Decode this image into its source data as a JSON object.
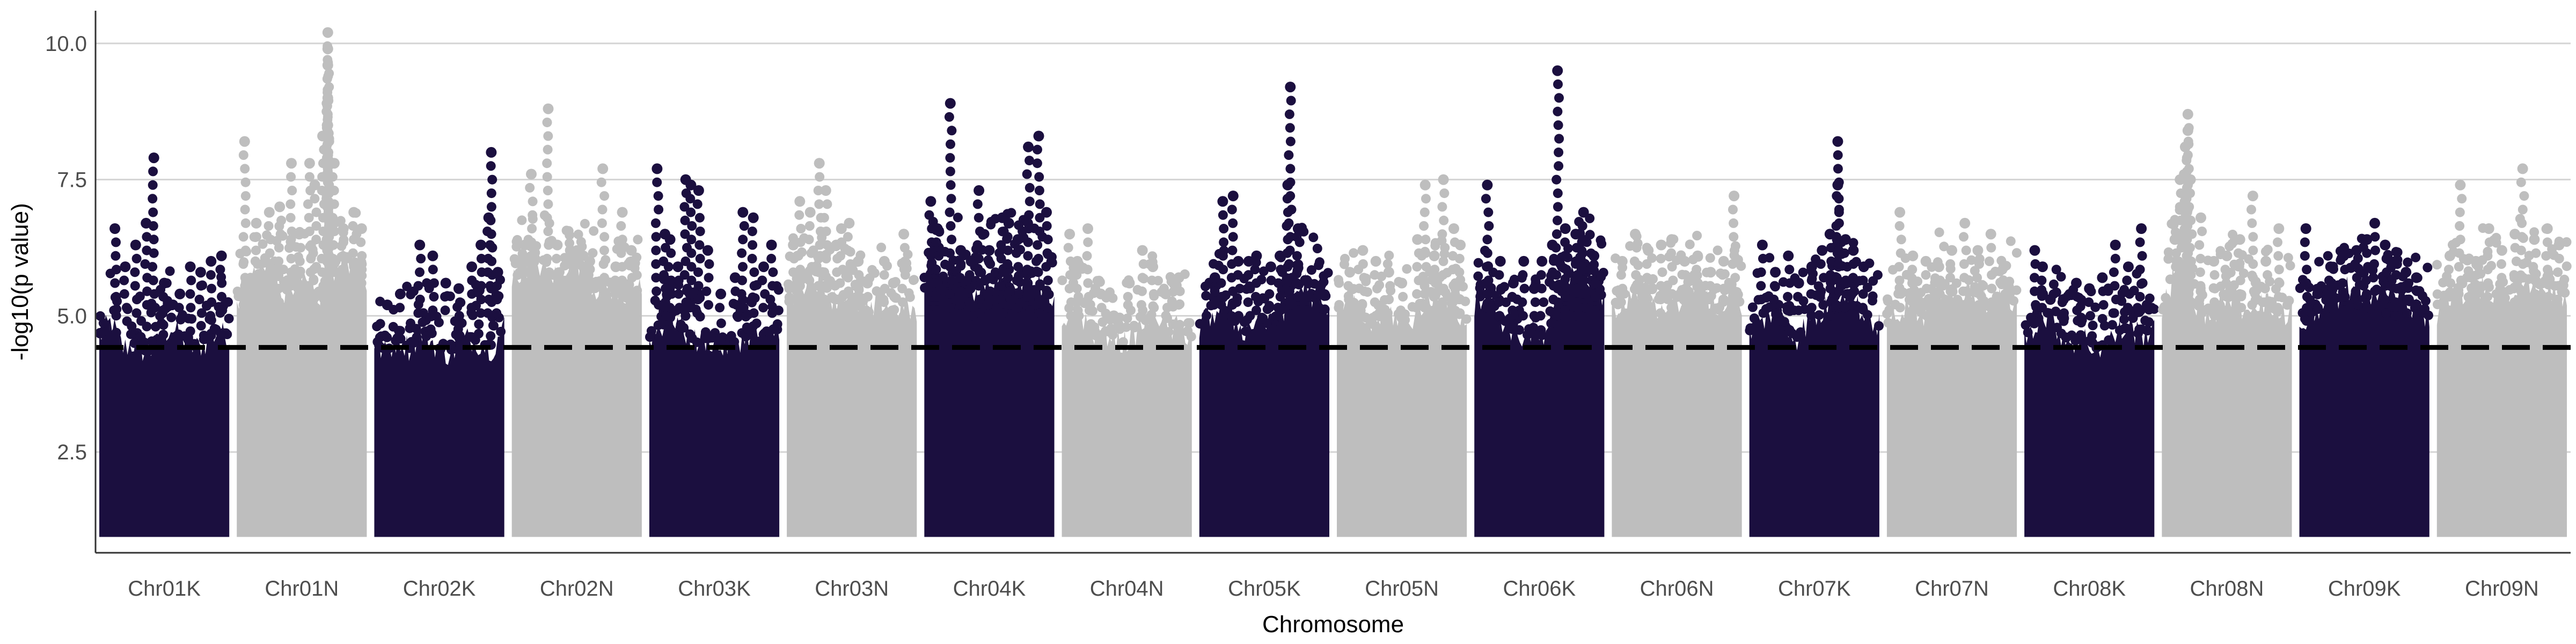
{
  "chart_data": {
    "type": "scatter",
    "subtype": "manhattan",
    "title": "",
    "xlabel": "Chromosome",
    "ylabel": "-log10(p value)",
    "ylim": [
      0.65,
      10.6
    ],
    "yticks": [
      2.5,
      5.0,
      7.5,
      10.0
    ],
    "ytick_labels": [
      "2.5",
      "5.0",
      "7.5",
      "10.0"
    ],
    "grid": "horizontal major gridlines",
    "legend": "none",
    "colors": {
      "K": "#1b0f3f",
      "N": "#bebebe",
      "threshold": "#000000",
      "grid": "#d4d4d4"
    },
    "threshold": {
      "value": 4.42,
      "style": "dashed"
    },
    "floor_value": 1.0,
    "chromosomes": [
      {
        "name": "Chr01K",
        "group": "K",
        "band_top": [
          4.6,
          4.9,
          4.4,
          4.5,
          4.3,
          4.5,
          4.8,
          4.6,
          4.4,
          4.5,
          4.7,
          4.6
        ],
        "peaks": [
          [
            0.12,
            6.6
          ],
          [
            0.2,
            5.9
          ],
          [
            0.28,
            6.3
          ],
          [
            0.36,
            6.7
          ],
          [
            0.42,
            7.9
          ],
          [
            0.5,
            5.6
          ],
          [
            0.62,
            5.4
          ],
          [
            0.7,
            5.9
          ],
          [
            0.78,
            5.8
          ],
          [
            0.86,
            6.0
          ],
          [
            0.94,
            6.1
          ],
          [
            0.56,
            5.2
          ]
        ]
      },
      {
        "name": "Chr01N",
        "group": "N",
        "band_top": [
          5.3,
          5.6,
          5.8,
          5.9,
          5.4,
          5.7,
          5.5,
          5.2,
          5.8,
          6.1,
          5.9,
          5.6
        ],
        "peaks": [
          [
            0.06,
            8.2
          ],
          [
            0.15,
            6.7
          ],
          [
            0.25,
            6.9
          ],
          [
            0.33,
            7.0
          ],
          [
            0.42,
            7.8
          ],
          [
            0.48,
            6.5
          ],
          [
            0.56,
            7.8
          ],
          [
            0.6,
            7.4
          ],
          [
            0.66,
            8.3
          ],
          [
            0.7,
            10.2
          ],
          [
            0.7,
            9.9
          ],
          [
            0.7,
            9.6
          ],
          [
            0.7,
            9.0
          ],
          [
            0.7,
            8.5
          ],
          [
            0.75,
            7.8
          ],
          [
            0.82,
            6.6
          ],
          [
            0.9,
            6.9
          ],
          [
            0.96,
            6.6
          ]
        ]
      },
      {
        "name": "Chr02K",
        "group": "K",
        "band_top": [
          4.5,
          4.3,
          4.6,
          4.4,
          4.7,
          4.5,
          4.3,
          4.4,
          4.6,
          4.5,
          4.4,
          4.8
        ],
        "peaks": [
          [
            0.1,
            5.2
          ],
          [
            0.2,
            5.4
          ],
          [
            0.35,
            6.3
          ],
          [
            0.45,
            6.1
          ],
          [
            0.55,
            5.6
          ],
          [
            0.65,
            5.5
          ],
          [
            0.75,
            5.9
          ],
          [
            0.82,
            6.3
          ],
          [
            0.88,
            6.8
          ],
          [
            0.9,
            8.0
          ],
          [
            0.95,
            5.8
          ]
        ]
      },
      {
        "name": "Chr02N",
        "group": "N",
        "band_top": [
          5.6,
          5.9,
          6.0,
          5.8,
          5.7,
          6.1,
          5.9,
          5.5,
          5.6,
          5.4,
          5.3,
          5.5
        ],
        "peaks": [
          [
            0.1,
            6.3
          ],
          [
            0.15,
            7.6
          ],
          [
            0.28,
            8.8
          ],
          [
            0.35,
            6.3
          ],
          [
            0.45,
            6.2
          ],
          [
            0.55,
            6.1
          ],
          [
            0.6,
            6.0
          ],
          [
            0.7,
            7.7
          ],
          [
            0.8,
            5.9
          ],
          [
            0.85,
            6.9
          ],
          [
            0.92,
            6.2
          ]
        ]
      },
      {
        "name": "Chr03K",
        "group": "K",
        "band_top": [
          4.6,
          4.8,
          5.0,
          4.7,
          4.5,
          4.6,
          4.4,
          4.5,
          4.6,
          4.7,
          4.5,
          4.8
        ],
        "peaks": [
          [
            0.06,
            7.7
          ],
          [
            0.12,
            6.5
          ],
          [
            0.16,
            6.4
          ],
          [
            0.22,
            5.9
          ],
          [
            0.28,
            7.5
          ],
          [
            0.32,
            7.4
          ],
          [
            0.38,
            7.3
          ],
          [
            0.45,
            6.2
          ],
          [
            0.55,
            5.4
          ],
          [
            0.66,
            5.7
          ],
          [
            0.72,
            6.9
          ],
          [
            0.8,
            6.8
          ],
          [
            0.88,
            5.9
          ],
          [
            0.94,
            6.3
          ]
        ]
      },
      {
        "name": "Chr03N",
        "group": "N",
        "band_top": [
          5.2,
          5.5,
          5.8,
          5.6,
          5.3,
          5.4,
          5.2,
          5.0,
          5.3,
          5.1,
          5.2,
          5.0
        ],
        "peaks": [
          [
            0.05,
            6.3
          ],
          [
            0.1,
            7.1
          ],
          [
            0.18,
            6.9
          ],
          [
            0.25,
            7.8
          ],
          [
            0.3,
            7.3
          ],
          [
            0.38,
            6.3
          ],
          [
            0.42,
            6.6
          ],
          [
            0.48,
            6.7
          ],
          [
            0.55,
            6.0
          ],
          [
            0.62,
            5.6
          ],
          [
            0.75,
            6.0
          ],
          [
            0.82,
            5.6
          ],
          [
            0.9,
            6.5
          ]
        ]
      },
      {
        "name": "Chr04K",
        "group": "K",
        "band_top": [
          5.5,
          5.8,
          5.6,
          5.9,
          5.4,
          5.5,
          5.7,
          5.9,
          5.6,
          5.8,
          5.5,
          5.3
        ],
        "peaks": [
          [
            0.05,
            7.1
          ],
          [
            0.1,
            6.6
          ],
          [
            0.2,
            8.9
          ],
          [
            0.28,
            6.2
          ],
          [
            0.36,
            6.0
          ],
          [
            0.42,
            7.3
          ],
          [
            0.5,
            6.2
          ],
          [
            0.6,
            6.8
          ],
          [
            0.65,
            6.7
          ],
          [
            0.72,
            6.4
          ],
          [
            0.8,
            8.1
          ],
          [
            0.88,
            8.3
          ],
          [
            0.94,
            6.9
          ]
        ]
      },
      {
        "name": "Chr04N",
        "group": "N",
        "band_top": [
          4.8,
          5.2,
          4.9,
          4.6,
          4.7,
          4.5,
          4.6,
          4.9,
          5.1,
          4.7,
          4.8,
          4.6
        ],
        "peaks": [
          [
            0.06,
            6.5
          ],
          [
            0.12,
            6.0
          ],
          [
            0.2,
            6.6
          ],
          [
            0.3,
            5.4
          ],
          [
            0.4,
            5.0
          ],
          [
            0.52,
            5.6
          ],
          [
            0.62,
            6.2
          ],
          [
            0.7,
            5.9
          ],
          [
            0.8,
            5.4
          ],
          [
            0.9,
            5.7
          ]
        ]
      },
      {
        "name": "Chr05K",
        "group": "K",
        "band_top": [
          4.8,
          5.0,
          5.2,
          4.9,
          4.7,
          5.0,
          4.8,
          5.1,
          5.4,
          5.6,
          5.2,
          5.0
        ],
        "peaks": [
          [
            0.12,
            5.7
          ],
          [
            0.18,
            7.1
          ],
          [
            0.26,
            7.2
          ],
          [
            0.3,
            6.0
          ],
          [
            0.38,
            6.0
          ],
          [
            0.44,
            6.1
          ],
          [
            0.55,
            5.9
          ],
          [
            0.62,
            6.1
          ],
          [
            0.68,
            7.4
          ],
          [
            0.7,
            9.2
          ],
          [
            0.76,
            6.6
          ],
          [
            0.84,
            5.6
          ],
          [
            0.92,
            5.4
          ]
        ]
      },
      {
        "name": "Chr05N",
        "group": "N",
        "band_top": [
          4.9,
          5.3,
          5.0,
          4.8,
          5.1,
          5.0,
          4.8,
          5.2,
          5.3,
          5.5,
          5.1,
          4.9
        ],
        "peaks": [
          [
            0.1,
            5.8
          ],
          [
            0.2,
            6.2
          ],
          [
            0.3,
            6.0
          ],
          [
            0.4,
            5.8
          ],
          [
            0.5,
            5.6
          ],
          [
            0.62,
            6.4
          ],
          [
            0.68,
            7.4
          ],
          [
            0.75,
            6.1
          ],
          [
            0.82,
            7.5
          ],
          [
            0.9,
            6.6
          ],
          [
            0.95,
            6.3
          ]
        ]
      },
      {
        "name": "Chr06K",
        "group": "K",
        "band_top": [
          5.2,
          5.5,
          5.0,
          4.8,
          4.6,
          4.7,
          4.5,
          5.2,
          5.8,
          6.0,
          5.6,
          5.3
        ],
        "peaks": [
          [
            0.1,
            7.4
          ],
          [
            0.2,
            6.0
          ],
          [
            0.3,
            5.6
          ],
          [
            0.38,
            6.0
          ],
          [
            0.46,
            5.5
          ],
          [
            0.52,
            6.0
          ],
          [
            0.6,
            6.3
          ],
          [
            0.64,
            9.5
          ],
          [
            0.7,
            6.6
          ],
          [
            0.78,
            6.5
          ],
          [
            0.84,
            6.9
          ],
          [
            0.92,
            6.1
          ]
        ]
      },
      {
        "name": "Chr06N",
        "group": "N",
        "band_top": [
          5.1,
          5.3,
          5.5,
          5.2,
          5.0,
          5.4,
          5.2,
          5.6,
          5.3,
          5.1,
          5.5,
          5.2
        ],
        "peaks": [
          [
            0.08,
            6.0
          ],
          [
            0.18,
            6.5
          ],
          [
            0.28,
            6.2
          ],
          [
            0.38,
            6.3
          ],
          [
            0.46,
            6.4
          ],
          [
            0.56,
            6.0
          ],
          [
            0.66,
            6.1
          ],
          [
            0.76,
            5.8
          ],
          [
            0.86,
            6.0
          ],
          [
            0.94,
            7.2
          ]
        ]
      },
      {
        "name": "Chr07K",
        "group": "K",
        "band_top": [
          4.7,
          4.9,
          5.1,
          4.8,
          4.6,
          4.9,
          5.0,
          5.3,
          5.5,
          5.2,
          5.0,
          4.8
        ],
        "peaks": [
          [
            0.1,
            6.3
          ],
          [
            0.2,
            5.8
          ],
          [
            0.3,
            6.1
          ],
          [
            0.38,
            5.6
          ],
          [
            0.48,
            5.9
          ],
          [
            0.56,
            6.2
          ],
          [
            0.62,
            6.5
          ],
          [
            0.68,
            7.4
          ],
          [
            0.68,
            8.2
          ],
          [
            0.74,
            6.4
          ],
          [
            0.8,
            6.2
          ],
          [
            0.88,
            5.9
          ]
        ]
      },
      {
        "name": "Chr07N",
        "group": "N",
        "band_top": [
          4.8,
          5.1,
          5.3,
          5.0,
          5.4,
          5.6,
          5.2,
          5.5,
          5.3,
          5.1,
          5.4,
          5.2
        ],
        "peaks": [
          [
            0.1,
            6.9
          ],
          [
            0.2,
            6.1
          ],
          [
            0.3,
            6.0
          ],
          [
            0.4,
            5.9
          ],
          [
            0.5,
            6.2
          ],
          [
            0.6,
            6.7
          ],
          [
            0.7,
            6.2
          ],
          [
            0.8,
            6.5
          ],
          [
            0.9,
            5.9
          ]
        ]
      },
      {
        "name": "Chr08K",
        "group": "K",
        "band_top": [
          4.6,
          4.9,
          5.0,
          4.7,
          4.5,
          4.6,
          4.4,
          4.5,
          4.7,
          4.8,
          4.6,
          4.9
        ],
        "peaks": [
          [
            0.08,
            6.2
          ],
          [
            0.14,
            5.9
          ],
          [
            0.2,
            5.3
          ],
          [
            0.3,
            5.3
          ],
          [
            0.4,
            5.6
          ],
          [
            0.5,
            5.5
          ],
          [
            0.6,
            5.7
          ],
          [
            0.7,
            6.3
          ],
          [
            0.8,
            5.9
          ],
          [
            0.9,
            6.6
          ]
        ]
      },
      {
        "name": "Chr08N",
        "group": "N",
        "band_top": [
          5.0,
          5.8,
          5.9,
          5.2,
          5.0,
          5.2,
          5.4,
          5.1,
          5.3,
          5.2,
          5.0,
          5.1
        ],
        "peaks": [
          [
            0.1,
            6.4
          ],
          [
            0.14,
            7.5
          ],
          [
            0.18,
            8.1
          ],
          [
            0.2,
            8.7
          ],
          [
            0.2,
            8.4
          ],
          [
            0.22,
            7.5
          ],
          [
            0.3,
            6.8
          ],
          [
            0.4,
            6.0
          ],
          [
            0.5,
            6.1
          ],
          [
            0.6,
            6.4
          ],
          [
            0.7,
            7.2
          ],
          [
            0.8,
            6.0
          ],
          [
            0.9,
            6.6
          ]
        ]
      },
      {
        "name": "Chr09K",
        "group": "K",
        "band_top": [
          4.7,
          5.0,
          5.2,
          5.3,
          5.5,
          5.4,
          5.2,
          5.6,
          5.5,
          5.3,
          5.1,
          5.0
        ],
        "peaks": [
          [
            0.05,
            6.6
          ],
          [
            0.14,
            5.4
          ],
          [
            0.24,
            5.9
          ],
          [
            0.34,
            6.1
          ],
          [
            0.44,
            6.2
          ],
          [
            0.52,
            6.4
          ],
          [
            0.58,
            6.7
          ],
          [
            0.66,
            6.3
          ],
          [
            0.74,
            6.0
          ],
          [
            0.82,
            5.8
          ],
          [
            0.9,
            5.7
          ]
        ]
      },
      {
        "name": "Chr09N",
        "group": "N",
        "band_top": [
          5.0,
          5.3,
          5.5,
          5.2,
          5.6,
          5.4,
          5.3,
          5.7,
          5.5,
          5.6,
          5.4,
          5.3
        ],
        "peaks": [
          [
            0.1,
            6.1
          ],
          [
            0.18,
            7.4
          ],
          [
            0.3,
            6.0
          ],
          [
            0.4,
            6.6
          ],
          [
            0.5,
            6.2
          ],
          [
            0.6,
            6.5
          ],
          [
            0.66,
            7.7
          ],
          [
            0.75,
            6.4
          ],
          [
            0.85,
            6.6
          ],
          [
            0.94,
            6.3
          ]
        ]
      }
    ]
  }
}
